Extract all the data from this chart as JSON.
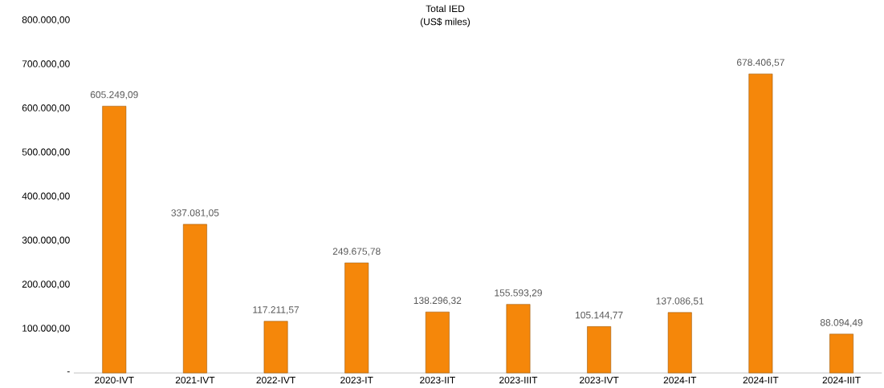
{
  "chart_data": {
    "type": "bar",
    "title": "Total IED",
    "subtitle": "(US$ miles)",
    "categories": [
      "2020-IVT",
      "2021-IVT",
      "2022-IVT",
      "2023-IT",
      "2023-IIT",
      "2023-IIIT",
      "2023-IVT",
      "2024-IT",
      "2024-IIT",
      "2024-IIIT"
    ],
    "values": [
      605249.09,
      337081.05,
      117211.57,
      249675.78,
      138296.32,
      155593.29,
      105144.77,
      137086.51,
      678406.57,
      88094.49
    ],
    "value_labels": [
      "605.249,09",
      "337.081,05",
      "117.211,57",
      "249.675,78",
      "138.296,32",
      "155.593,29",
      "105.144,77",
      "137.086,51",
      "678.406,57",
      "88.094,49"
    ],
    "color": "#f5870a",
    "ylim": [
      0,
      800000
    ],
    "yticks": [
      {
        "value": 0,
        "label": "-"
      },
      {
        "value": 100000,
        "label": "100.000,00"
      },
      {
        "value": 200000,
        "label": "200.000,00"
      },
      {
        "value": 300000,
        "label": "300.000,00"
      },
      {
        "value": 400000,
        "label": "400.000,00"
      },
      {
        "value": 500000,
        "label": "500.000,00"
      },
      {
        "value": 600000,
        "label": "600.000,00"
      },
      {
        "value": 700000,
        "label": "700.000,00"
      },
      {
        "value": 800000,
        "label": "800.000,00"
      }
    ]
  }
}
